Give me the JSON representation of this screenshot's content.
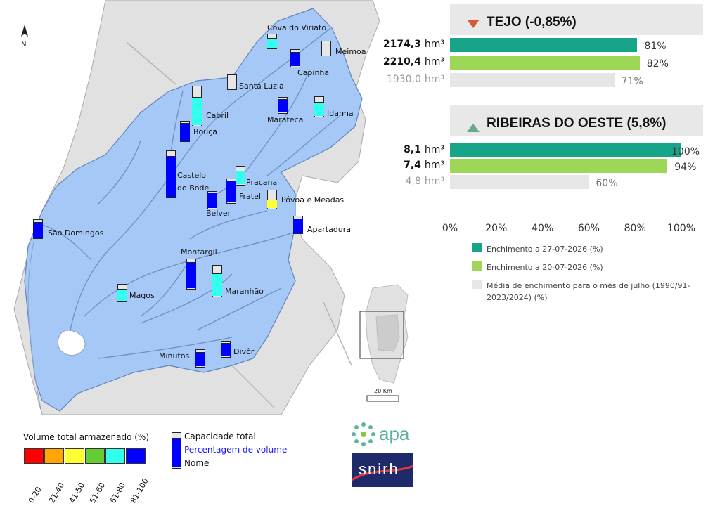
{
  "map": {
    "north_label": "N",
    "reservoirs": [
      {
        "name": "Cova do Viriato",
        "pct": 70
      },
      {
        "name": "Meimoa",
        "pct": 0
      },
      {
        "name": "Capinha",
        "pct": 85
      },
      {
        "name": "Santa Luzia",
        "pct": 0
      },
      {
        "name": "Cabril",
        "pct": 72
      },
      {
        "name": "Marateca",
        "pct": 85
      },
      {
        "name": "Idanha",
        "pct": 70
      },
      {
        "name": "Bouçã",
        "pct": 88
      },
      {
        "name": "Castelo do Bode",
        "pct": 88
      },
      {
        "name": "Pracana",
        "pct": 72
      },
      {
        "name": "Fratel",
        "pct": 90
      },
      {
        "name": "Belver",
        "pct": 90
      },
      {
        "name": "Póvoa e Meadas",
        "pct": 45
      },
      {
        "name": "Apartadura",
        "pct": 85
      },
      {
        "name": "São Domingos",
        "pct": 85
      },
      {
        "name": "Montargil",
        "pct": 88
      },
      {
        "name": "Maranhão",
        "pct": 72
      },
      {
        "name": "Magos",
        "pct": 70
      },
      {
        "name": "Divôr",
        "pct": 85
      },
      {
        "name": "Minutos",
        "pct": 85
      }
    ],
    "inset": {
      "scale_label": "20 Km"
    }
  },
  "legend_scale": {
    "title": "Volume total armazenado (%)",
    "classes": [
      {
        "label": "0-20",
        "color": "#ff0000"
      },
      {
        "label": "21-40",
        "color": "#ffa500"
      },
      {
        "label": "41-50",
        "color": "#ffff33"
      },
      {
        "label": "51-60",
        "color": "#66cc33"
      },
      {
        "label": "61-80",
        "color": "#33ffee"
      },
      {
        "label": "81-100",
        "color": "#0000ff"
      }
    ]
  },
  "legend_icon": {
    "capacity": "Capacidade total",
    "percentage": "Percentagem de volume",
    "name": "Nome"
  },
  "logos": {
    "apa": "apa",
    "snirh": "snirh"
  },
  "chart_data": {
    "type": "bar",
    "orientation": "horizontal",
    "xlim": [
      0,
      100
    ],
    "ticks": [
      "0%",
      "20%",
      "40%",
      "60%",
      "80%",
      "100%"
    ],
    "colors": {
      "current": "#17a589",
      "previous": "#9ed655",
      "average": "#e6e6e6",
      "down": "#d35a35",
      "up": "#6aaa88"
    },
    "groups": [
      {
        "title": "TEJO (-0,85%)",
        "trend": "down",
        "rows": [
          {
            "series": "current",
            "volume": "2174,3",
            "unit": "hm³",
            "value": 81,
            "label": "81%"
          },
          {
            "series": "previous",
            "volume": "2210,4",
            "unit": "hm³",
            "value": 82,
            "label": "82%"
          },
          {
            "series": "average",
            "volume": "1930,0",
            "unit": "hm³",
            "value": 71,
            "label": "71%"
          }
        ]
      },
      {
        "title": "RIBEIRAS DO OESTE (5,8%)",
        "trend": "up",
        "rows": [
          {
            "series": "current",
            "volume": "8,1",
            "unit": "hm³",
            "value": 100,
            "label": "100%"
          },
          {
            "series": "previous",
            "volume": "7,4",
            "unit": "hm³",
            "value": 94,
            "label": "94%"
          },
          {
            "series": "average",
            "volume": "4,8",
            "unit": "hm³",
            "value": 60,
            "label": "60%"
          }
        ]
      }
    ],
    "legend": [
      {
        "series": "current",
        "label": "Enchimento a 27-07-2026 (%)"
      },
      {
        "series": "previous",
        "label": "Enchimento a 20-07-2026 (%)"
      },
      {
        "series": "average",
        "label": "Média de enchimento para o mês de julho (1990/91-2023/2024) (%)"
      }
    ]
  }
}
